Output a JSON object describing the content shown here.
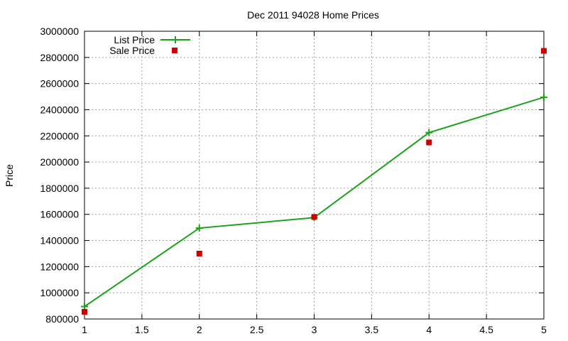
{
  "chart_data": {
    "type": "line",
    "title": "Dec 2011 94028 Home Prices",
    "xlabel": "",
    "ylabel": "Price",
    "xlim": [
      1,
      5
    ],
    "ylim": [
      800000,
      3000000
    ],
    "xticks": [
      1,
      1.5,
      2,
      2.5,
      3,
      3.5,
      4,
      4.5,
      5
    ],
    "xtick_labels": [
      "1",
      "1.5",
      "2",
      "2.5",
      "3",
      "3.5",
      "4",
      "4.5",
      "5"
    ],
    "yticks": [
      800000,
      1000000,
      1200000,
      1400000,
      1600000,
      1800000,
      2000000,
      2200000,
      2400000,
      2600000,
      2800000,
      3000000
    ],
    "ytick_labels": [
      "800000",
      "1000000",
      "1200000",
      "1400000",
      "1600000",
      "1800000",
      "2000000",
      "2200000",
      "2400000",
      "2600000",
      "2800000",
      "3000000"
    ],
    "grid": true,
    "legend_position": "top-left",
    "series": [
      {
        "name": "List Price",
        "style": "line-with-plus-markers",
        "color": "#1aa31a",
        "x": [
          1,
          2,
          3,
          4,
          5
        ],
        "y": [
          895000,
          1495000,
          1575000,
          2225000,
          2495000
        ]
      },
      {
        "name": "Sale Price",
        "style": "square-markers",
        "color": "#cc0000",
        "x": [
          1,
          2,
          3,
          4,
          5
        ],
        "y": [
          855000,
          1300000,
          1580000,
          2150000,
          2850000
        ]
      }
    ]
  }
}
